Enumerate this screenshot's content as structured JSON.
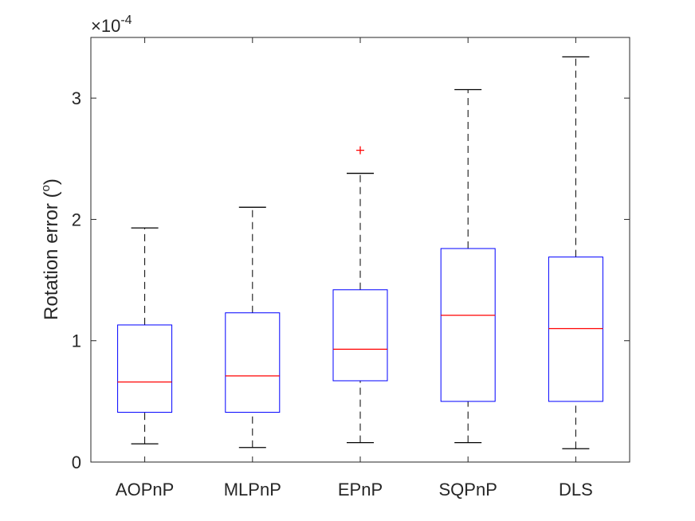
{
  "chart_data": {
    "type": "boxplot",
    "ylabel_main": "Rotation error (",
    "ylabel_sup": "o",
    "ylabel_tail": ")",
    "exponent": {
      "times": "×10",
      "power": "-4"
    },
    "ylim": [
      0,
      3.5
    ],
    "yticks": [
      0,
      1,
      2,
      3
    ],
    "ytick_labels": [
      "0",
      "1",
      "2",
      "3"
    ],
    "categories": [
      "AOPnP",
      "MLPnP",
      "EPnP",
      "SQPnP",
      "DLS"
    ],
    "boxes": [
      {
        "name": "AOPnP",
        "whisker_low": 0.15,
        "q1": 0.41,
        "median": 0.66,
        "q3": 1.13,
        "whisker_high": 1.93,
        "outliers": []
      },
      {
        "name": "MLPnP",
        "whisker_low": 0.12,
        "q1": 0.41,
        "median": 0.71,
        "q3": 1.23,
        "whisker_high": 2.1,
        "outliers": []
      },
      {
        "name": "EPnP",
        "whisker_low": 0.16,
        "q1": 0.67,
        "median": 0.93,
        "q3": 1.42,
        "whisker_high": 2.38,
        "outliers": [
          2.57
        ]
      },
      {
        "name": "SQPnP",
        "whisker_low": 0.16,
        "q1": 0.5,
        "median": 1.21,
        "q3": 1.76,
        "whisker_high": 3.07,
        "outliers": []
      },
      {
        "name": "DLS",
        "whisker_low": 0.11,
        "q1": 0.5,
        "median": 1.1,
        "q3": 1.69,
        "whisker_high": 3.34,
        "outliers": []
      }
    ],
    "colors": {
      "box": "#0000ff",
      "median": "#ff0000",
      "whisker": "#000000",
      "outlier": "#ff0000",
      "axis": "#262626"
    }
  }
}
